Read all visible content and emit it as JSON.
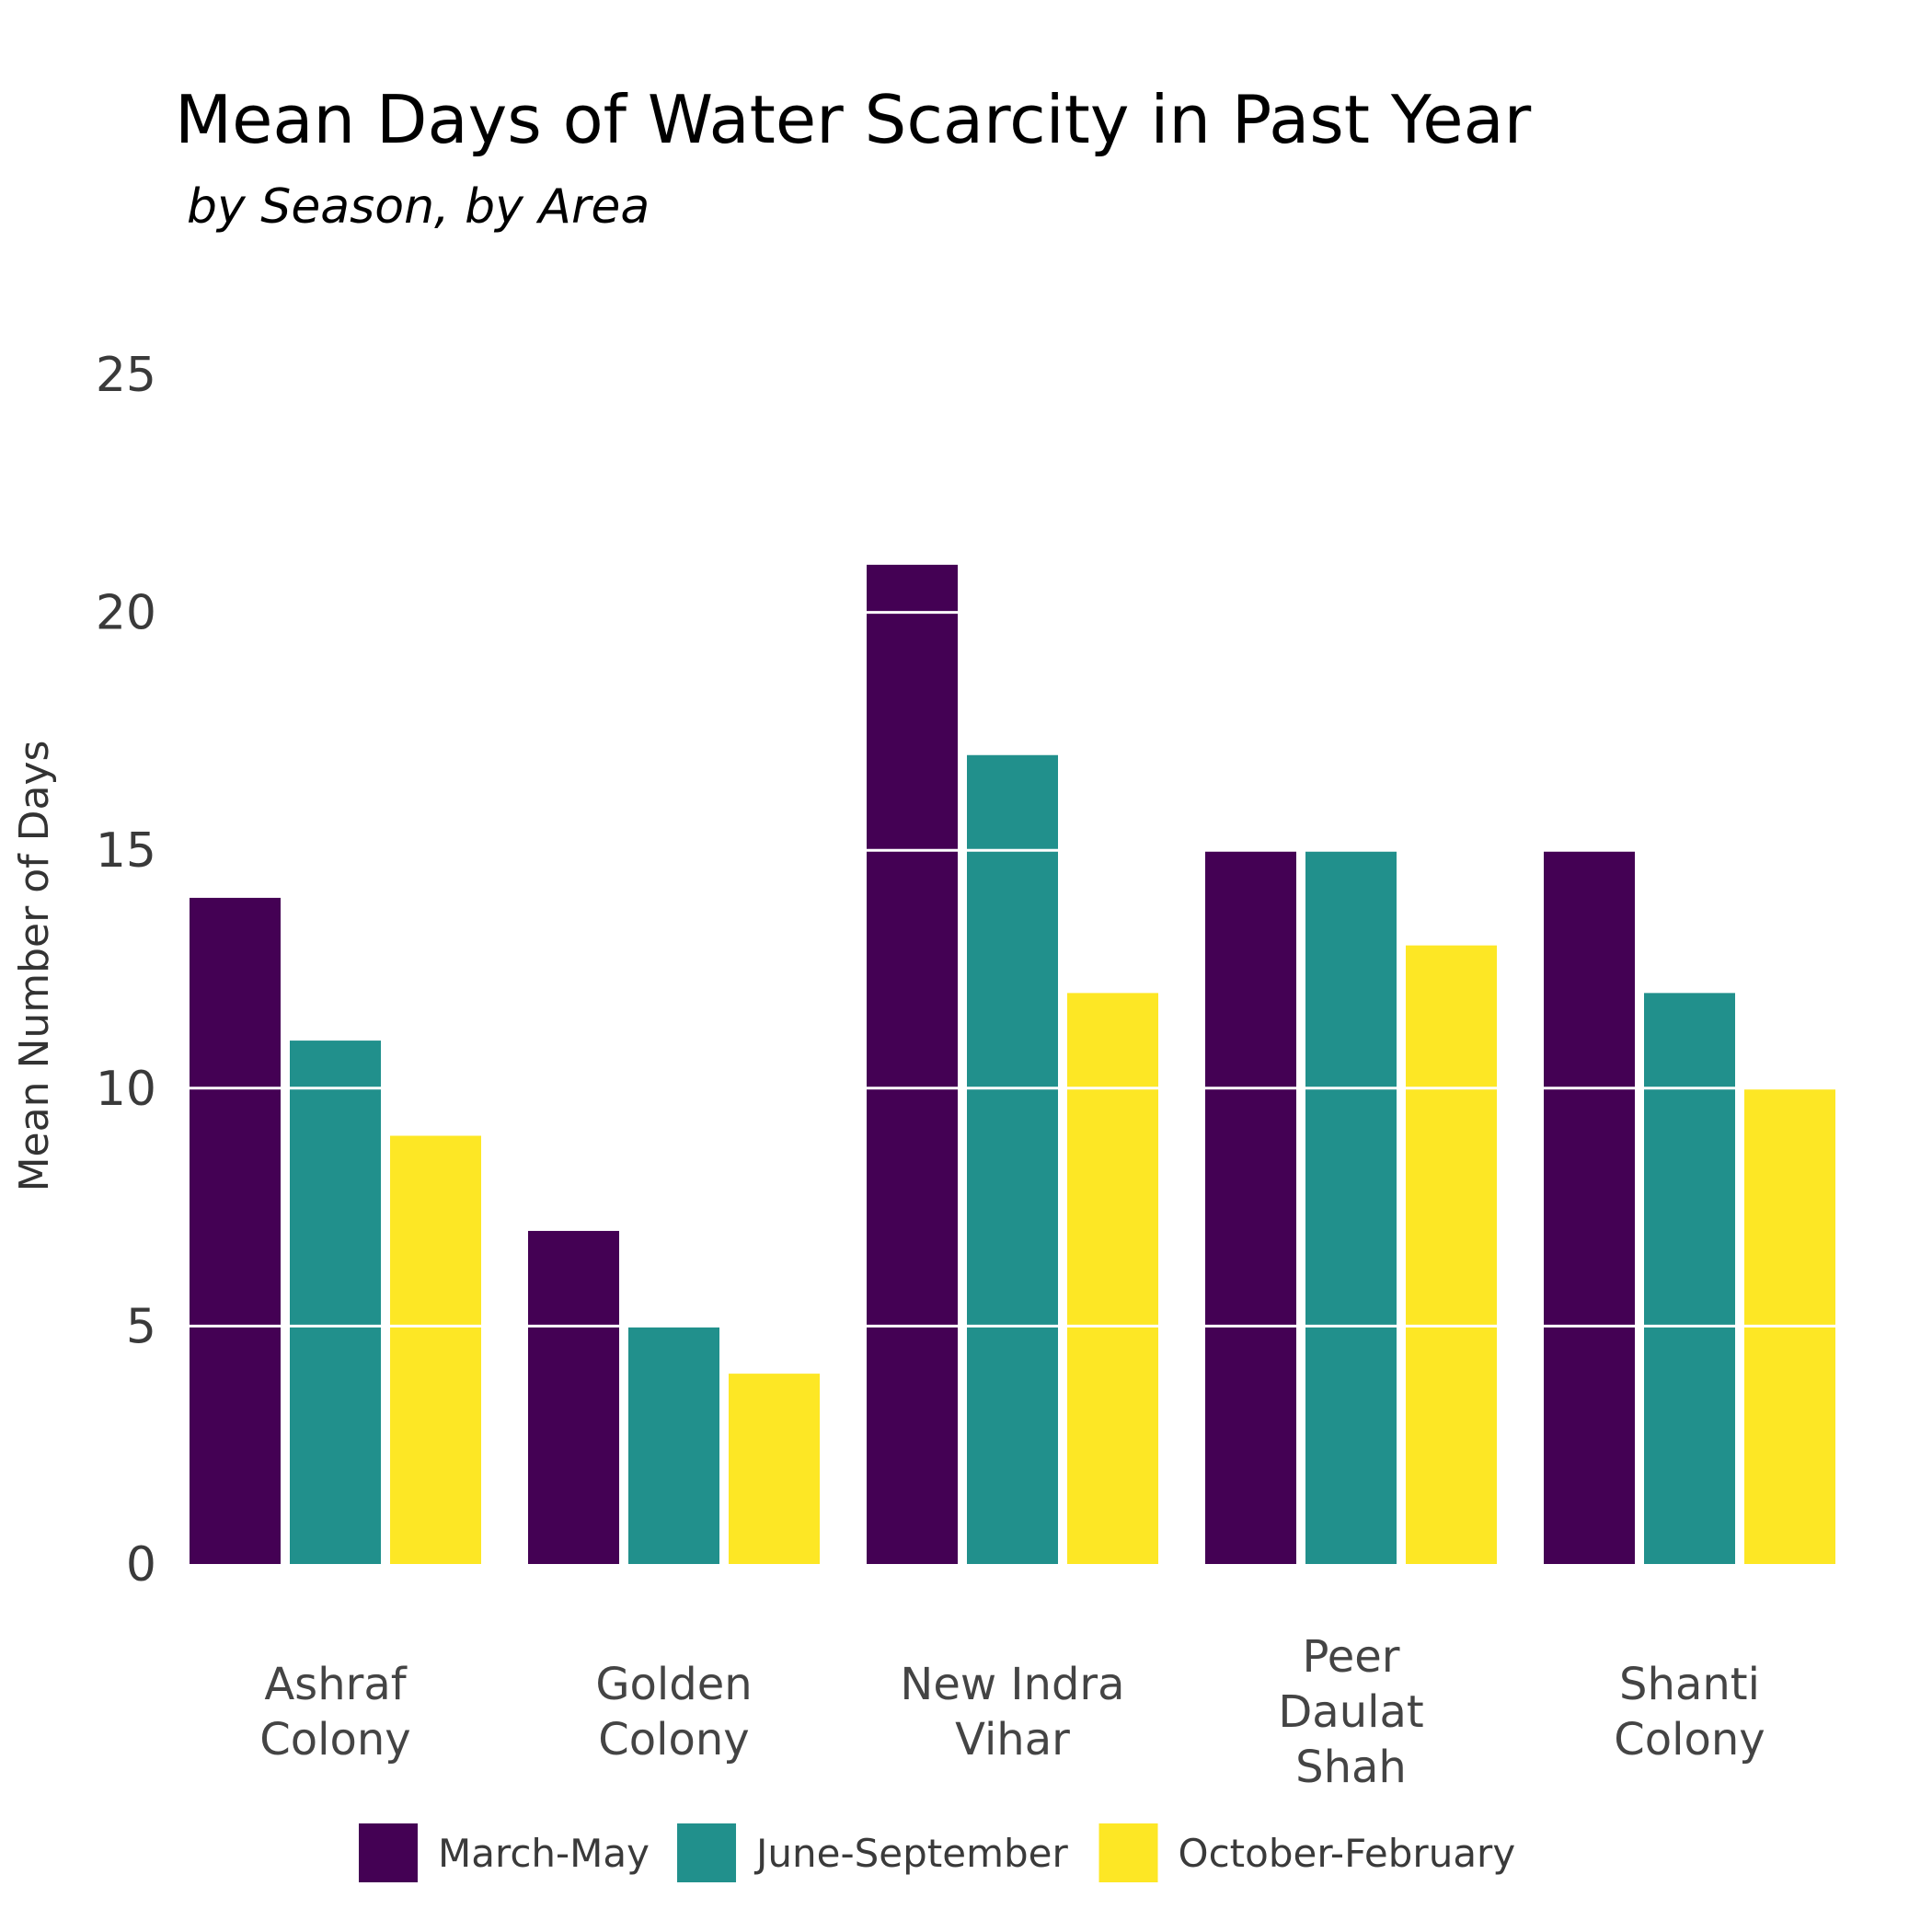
{
  "chart_data": {
    "type": "bar",
    "title": "Mean Days of Water Scarcity in Past Year",
    "subtitle": "by Season, by Area",
    "xlabel": "",
    "ylabel": "Mean Number of Days",
    "ylim": [
      0,
      25
    ],
    "yticks": [
      0,
      5,
      10,
      15,
      20,
      25
    ],
    "grid": "horizontal lines drawn over bars",
    "legend_position": "bottom",
    "categories": [
      [
        "Ashraf",
        "Colony"
      ],
      [
        "Golden",
        "Colony"
      ],
      [
        "New Indra",
        "Vihar"
      ],
      [
        "Peer",
        "Daulat",
        "Shah"
      ],
      [
        "Shanti",
        "Colony"
      ]
    ],
    "series": [
      {
        "name": "March-May",
        "color": "#440154",
        "values": [
          14,
          7,
          21,
          15,
          15
        ]
      },
      {
        "name": "June-September",
        "color": "#21908C",
        "values": [
          11,
          5,
          17,
          15,
          12
        ]
      },
      {
        "name": "October-February",
        "color": "#FDE725",
        "values": [
          9,
          4,
          12,
          13,
          10
        ]
      }
    ]
  }
}
